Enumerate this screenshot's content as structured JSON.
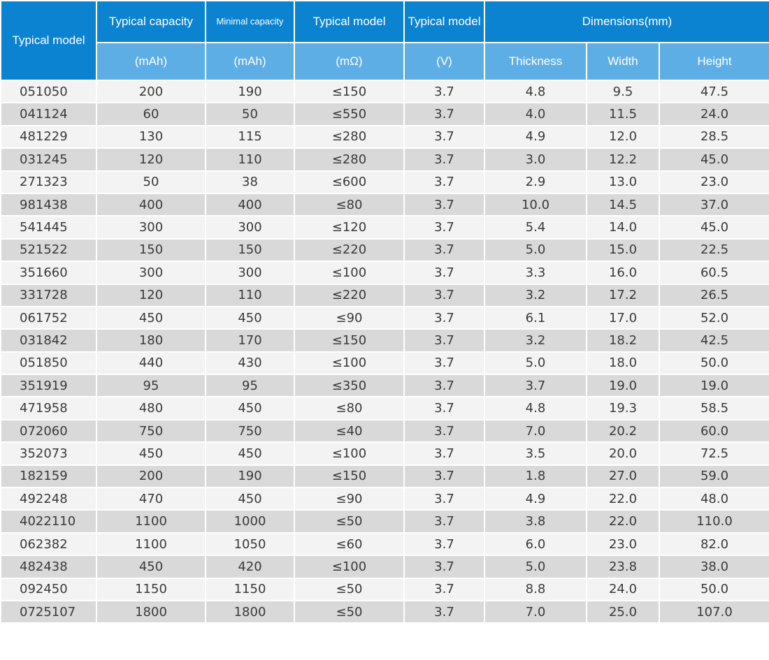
{
  "header": {
    "model": "Typical model",
    "capacity": "Typical capacity",
    "min_capacity": "Minimal capacity",
    "resistance": "Typical model",
    "voltage": "Typical model",
    "dimensions": "Dimensions(mm)",
    "unit_capacity": "(mAh)",
    "unit_min_capacity": "(mAh)",
    "unit_resistance": "(mΩ)",
    "unit_voltage": "(V)",
    "thickness": "Thickness",
    "width": "Width",
    "height": "Height"
  },
  "colors": {
    "header_dark": "#0b83d1",
    "header_light": "#5eaee6",
    "row_light": "#f3f3f3",
    "row_dark": "#d9d9d9"
  },
  "rows": [
    [
      "051050",
      "200",
      "190",
      "≤150",
      "3.7",
      "4.8",
      "9.5",
      "47.5"
    ],
    [
      "041124",
      "60",
      "50",
      "≤550",
      "3.7",
      "4.0",
      "11.5",
      "24.0"
    ],
    [
      "481229",
      "130",
      "115",
      "≤280",
      "3.7",
      "4.9",
      "12.0",
      "28.5"
    ],
    [
      "031245",
      "120",
      "110",
      "≤280",
      "3.7",
      "3.0",
      "12.2",
      "45.0"
    ],
    [
      "271323",
      "50",
      "38",
      "≤600",
      "3.7",
      "2.9",
      "13.0",
      "23.0"
    ],
    [
      "981438",
      "400",
      "400",
      "≤80",
      "3.7",
      "10.0",
      "14.5",
      "37.0"
    ],
    [
      "541445",
      "300",
      "300",
      "≤120",
      "3.7",
      "5.4",
      "14.0",
      "45.0"
    ],
    [
      "521522",
      "150",
      "150",
      "≤220",
      "3.7",
      "5.0",
      "15.0",
      "22.5"
    ],
    [
      "351660",
      "300",
      "300",
      "≤100",
      "3.7",
      "3.3",
      "16.0",
      "60.5"
    ],
    [
      "331728",
      "120",
      "110",
      "≤220",
      "3.7",
      "3.2",
      "17.2",
      "26.5"
    ],
    [
      "061752",
      "450",
      "450",
      "≤90",
      "3.7",
      "6.1",
      "17.0",
      "52.0"
    ],
    [
      "031842",
      "180",
      "170",
      "≤150",
      "3.7",
      "3.2",
      "18.2",
      "42.5"
    ],
    [
      "051850",
      "440",
      "430",
      "≤100",
      "3.7",
      "5.0",
      "18.0",
      "50.0"
    ],
    [
      "351919",
      "95",
      "95",
      "≤350",
      "3.7",
      "3.7",
      "19.0",
      "19.0"
    ],
    [
      "471958",
      "480",
      "450",
      "≤80",
      "3.7",
      "4.8",
      "19.3",
      "58.5"
    ],
    [
      "072060",
      "750",
      "750",
      "≤40",
      "3.7",
      "7.0",
      "20.2",
      "60.0"
    ],
    [
      "352073",
      "450",
      "450",
      "≤100",
      "3.7",
      "3.5",
      "20.0",
      "72.5"
    ],
    [
      "182159",
      "200",
      "190",
      "≤150",
      "3.7",
      "1.8",
      "27.0",
      "59.0"
    ],
    [
      "492248",
      "470",
      "450",
      "≤90",
      "3.7",
      "4.9",
      "22.0",
      "48.0"
    ],
    [
      "4022110",
      "1100",
      "1000",
      "≤50",
      "3.7",
      "3.8",
      "22.0",
      "110.0"
    ],
    [
      "062382",
      "1100",
      "1050",
      "≤60",
      "3.7",
      "6.0",
      "23.0",
      "82.0"
    ],
    [
      "482438",
      "450",
      "420",
      "≤100",
      "3.7",
      "5.0",
      "23.8",
      "38.0"
    ],
    [
      "092450",
      "1150",
      "1150",
      "≤50",
      "3.7",
      "8.8",
      "24.0",
      "50.0"
    ],
    [
      "0725107",
      "1800",
      "1800",
      "≤50",
      "3.7",
      "7.0",
      "25.0",
      "107.0"
    ]
  ]
}
